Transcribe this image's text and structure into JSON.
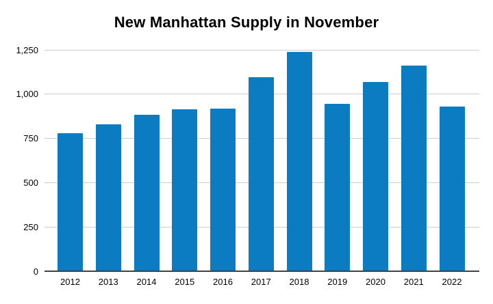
{
  "chart_data": {
    "type": "bar",
    "title": "New Manhattan Supply in November",
    "categories": [
      "2012",
      "2013",
      "2014",
      "2015",
      "2016",
      "2017",
      "2018",
      "2019",
      "2020",
      "2021",
      "2022"
    ],
    "values": [
      780,
      831,
      885,
      915,
      919,
      1095,
      1240,
      945,
      1067,
      1162,
      930
    ],
    "xlabel": "",
    "ylabel": "",
    "ylim": [
      0,
      1250
    ],
    "yticks": [
      0,
      250,
      500,
      750,
      1000,
      1250
    ],
    "ytick_labels": [
      "0",
      "250",
      "500",
      "750",
      "1,000",
      "1,250"
    ],
    "grid": true,
    "legend": false,
    "colors": {
      "bar": "#0b7cc1",
      "gridline": "#cccccc",
      "axis_line": "#424242",
      "title_text": "#000000",
      "tick_text": "#000000",
      "background": "#ffffff"
    }
  }
}
